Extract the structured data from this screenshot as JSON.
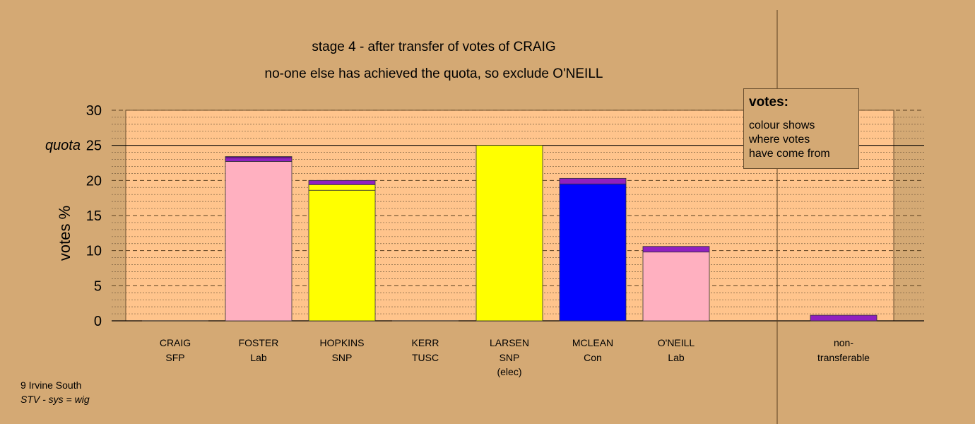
{
  "chart_data": {
    "type": "bar",
    "title": "stage 4 - after transfer of votes of CRAIG",
    "subtitle": "no-one else has achieved the quota, so exclude O'NEILL",
    "ylabel": "votes %",
    "ylim": [
      0,
      30
    ],
    "yticks": [
      0,
      5,
      10,
      15,
      20,
      25,
      30
    ],
    "quota": 25,
    "quota_label": "quota",
    "grid": true,
    "categories": [
      {
        "name": "CRAIG",
        "party": "SFP",
        "note": ""
      },
      {
        "name": "FOSTER",
        "party": "Lab",
        "note": ""
      },
      {
        "name": "HOPKINS",
        "party": "SNP",
        "note": ""
      },
      {
        "name": "KERR",
        "party": "TUSC",
        "note": ""
      },
      {
        "name": "LARSEN",
        "party": "SNP",
        "note": "(elec)"
      },
      {
        "name": "MCLEAN",
        "party": "Con",
        "note": ""
      },
      {
        "name": "O'NEILL",
        "party": "Lab",
        "note": ""
      }
    ],
    "nontransferable_label": [
      "non-",
      "transferable"
    ],
    "bars": [
      {
        "category": "CRAIG",
        "segments": []
      },
      {
        "category": "FOSTER",
        "segments": [
          {
            "value": 22.7,
            "color": "#ffb0c0"
          },
          {
            "value": 0.5,
            "color": "#9020c0"
          },
          {
            "value": 0.2,
            "color": "#7a00b0"
          }
        ]
      },
      {
        "category": "HOPKINS",
        "segments": [
          {
            "value": 18.6,
            "color": "#ffff00"
          },
          {
            "value": 0.8,
            "color": "#ffff00"
          },
          {
            "value": 0.6,
            "color": "#9020c0"
          }
        ]
      },
      {
        "category": "KERR",
        "segments": []
      },
      {
        "category": "LARSEN",
        "segments": [
          {
            "value": 25.0,
            "color": "#ffff00"
          }
        ]
      },
      {
        "category": "MCLEAN",
        "segments": [
          {
            "value": 19.5,
            "color": "#0000ff"
          },
          {
            "value": 0.8,
            "color": "#9020c0"
          }
        ]
      },
      {
        "category": "O'NEILL",
        "segments": [
          {
            "value": 9.8,
            "color": "#ffb0c0"
          },
          {
            "value": 0.8,
            "color": "#9020c0"
          }
        ]
      },
      {
        "category": "non-transferable",
        "segments": [
          {
            "value": 0.8,
            "color": "#9020c0"
          }
        ]
      }
    ],
    "legend": {
      "title": "votes:",
      "lines": [
        "colour shows",
        "where votes",
        "have come from"
      ]
    }
  },
  "footer": {
    "ward": "9 Irvine South",
    "system": "STV - sys = wig"
  },
  "colors": {
    "background": "#d4a974",
    "plot_area": "#ffc48c"
  }
}
